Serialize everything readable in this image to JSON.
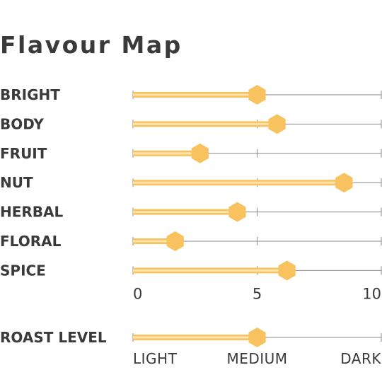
{
  "title": "Flavour Map",
  "colors": {
    "bar": "#f8c35f",
    "bar_highlight": "#fde2ab",
    "track": "#8a8a8a",
    "text": "#3a3a3a"
  },
  "chart_data": {
    "type": "bar",
    "orientation": "horizontal",
    "marker": "hexagon",
    "categories": [
      "BRIGHT",
      "BODY",
      "FRUIT",
      "NUT",
      "HERBAL",
      "FLORAL",
      "SPICE"
    ],
    "values": [
      5.0,
      5.8,
      2.7,
      8.5,
      4.2,
      1.7,
      6.2
    ],
    "xlim": [
      0,
      10
    ],
    "xticks": [
      0,
      5,
      10
    ],
    "xtick_labels": [
      "0",
      "5",
      "10"
    ],
    "roast": {
      "label": "ROAST LEVEL",
      "value": 0.5,
      "tick_labels": [
        "LIGHT",
        "MEDIUM",
        "DARK"
      ]
    }
  }
}
